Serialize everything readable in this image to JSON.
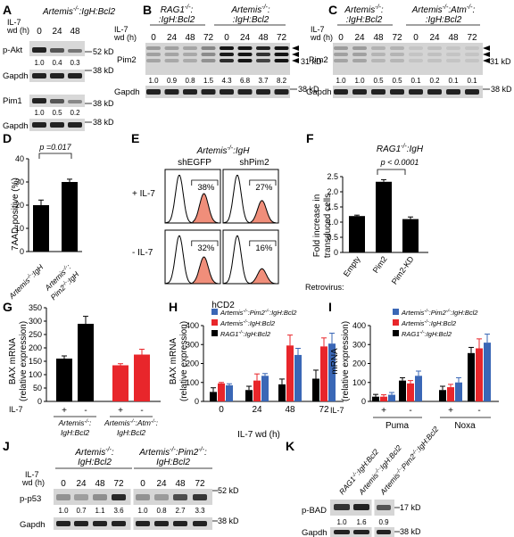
{
  "figure": {
    "panel_letters": [
      "A",
      "B",
      "C",
      "D",
      "E",
      "F",
      "G",
      "H",
      "I",
      "J",
      "K"
    ]
  },
  "panel_a": {
    "genotype_1": "Artemis",
    "genotype_sup": "-/-",
    "genotype_2": ":IgH:Bcl2",
    "il7_label": "IL-7",
    "wd_label": "wd (h)",
    "timepoints": [
      "0",
      "24",
      "48"
    ],
    "rows": [
      "p-Akt",
      "Gapdh",
      "Pim1",
      "Gapdh"
    ],
    "pakt_values": [
      "1.0",
      "0.4",
      "0.3"
    ],
    "pim1_values": [
      "1.0",
      "0.5",
      "0.2"
    ],
    "markers": [
      "52 kD",
      "38 kD",
      "38 kD",
      "38 kD"
    ]
  },
  "panel_b": {
    "il7_label": "IL-7",
    "wd_label": "wd (h)",
    "group_1_line1": "RAG1",
    "group_1_sup": "-/-",
    "group_1_line2": ":IgH:Bcl2",
    "group_2_line1": "Artemis",
    "group_2_sup": "-/-",
    "group_2_line2": ":IgH:Bcl2",
    "timepoints": [
      "0",
      "24",
      "48",
      "72",
      "0",
      "24",
      "48",
      "72"
    ],
    "rows": [
      "Pim2",
      "Gapdh"
    ],
    "pim2_values": [
      "1.0",
      "0.9",
      "0.8",
      "1.5",
      "4.3",
      "6.8",
      "3.7",
      "8.2"
    ],
    "markers": [
      "31 kD",
      "38 kD"
    ]
  },
  "panel_c": {
    "il7_label": "IL-7",
    "wd_label": "wd (h)",
    "group_1_line1": "Artemis",
    "group_1_sup": "-/-",
    "group_1_line2": ":IgH:Bcl2",
    "group_2_line1": "Artemis",
    "group_2_sup": "-/-",
    "group_2_mid": ":Atm",
    "group_2_sup2": "-/-",
    "group_2_line2": ":IgH:Bcl2",
    "timepoints": [
      "0",
      "24",
      "48",
      "72",
      "0",
      "24",
      "48",
      "72"
    ],
    "rows": [
      "Pim2",
      "Gapdh"
    ],
    "pim2_values": [
      "1.0",
      "1.0",
      "0.5",
      "0.5",
      "0.1",
      "0.2",
      "0.1",
      "0.1"
    ],
    "markers": [
      "31 kD",
      "38 kD"
    ]
  },
  "panel_d": {
    "chart_data": {
      "type": "bar",
      "categories": [
        "Artemis-/-IgH",
        "Artemis-/-Pim2-/-IgH"
      ],
      "values": [
        20,
        30
      ],
      "errors": [
        2.2,
        1.2
      ],
      "ylabel": "7AAD-positive (%)",
      "ylim": [
        0,
        40
      ],
      "yticks": [
        "0",
        "10",
        "20",
        "30",
        "40"
      ],
      "pvalue": "p =0.017"
    },
    "cat1": "Artemis",
    "cat1_sup": "-/-",
    "cat1_b": ":IgH",
    "cat2": "Artemis",
    "cat2_sup": "-/-",
    "cat2_b": ":",
    "cat2_c": "Pim2",
    "cat2_sup2": "-/-",
    "cat2_d": ":IgH"
  },
  "panel_e": {
    "title": "Artemis",
    "title_sup": "-/-",
    "title_b": ":IgH",
    "col_1": "shEGFP",
    "col_2": "shPim2",
    "row_1": "+ IL-7",
    "row_2": "- IL-7",
    "percent_values": [
      "38%",
      "27%",
      "32%",
      "16%"
    ],
    "xlabel": "hCD2"
  },
  "panel_f": {
    "chart_data": {
      "type": "bar",
      "categories": [
        "Empty",
        "Pim2",
        "Pim2-KD"
      ],
      "values": [
        1.2,
        2.33,
        1.1
      ],
      "errors": [
        0.03,
        0.07,
        0.07
      ],
      "ylabel": "Fold increase in transduced cells",
      "ylim": [
        0,
        2.5
      ],
      "yticks": [
        "0",
        "0.5",
        "1.0",
        "1.5",
        "2.0",
        "2.5"
      ],
      "pvalue": "p < 0.0001"
    },
    "title": "RAG1",
    "title_sup": "-/-",
    "title_b": ":IgH",
    "ylabel_1": "Fold increase in",
    "ylabel_2": "transduced cells",
    "retrovirus_label": "Retrovirus:"
  },
  "panel_g": {
    "chart_data": {
      "type": "bar",
      "categories": [
        "+",
        "-",
        "+",
        "-"
      ],
      "values": [
        160,
        290,
        135,
        175
      ],
      "errors": [
        10,
        28,
        6,
        20
      ],
      "colors": [
        "#000000",
        "#000000",
        "#e8262b",
        "#e8262b"
      ],
      "ylabel": "BAX mRNA (relative expression)",
      "ylim": [
        0,
        350
      ],
      "yticks": [
        "0",
        "50",
        "100",
        "150",
        "200",
        "250",
        "300",
        "350"
      ]
    },
    "ylabel_1": "BAX mRNA",
    "ylabel_2": "(relative expression)",
    "il7_label": "IL-7",
    "group_1_a": "Artemis",
    "group_1_sup": "-/-",
    "group_1_b": ":",
    "group_1_c": "IgH:Bcl2",
    "group_2_a": "Artemis",
    "group_2_sup": "-/-",
    "group_2_b": ":Atm",
    "group_2_sup2": "-/-",
    "group_2_c": "IgH:Bcl2"
  },
  "panel_h": {
    "chart_data": {
      "type": "bar",
      "categories": [
        "0",
        "24",
        "48",
        "72"
      ],
      "series": [
        {
          "name": "RAG1-/-IgH:Bcl2",
          "values": [
            50,
            60,
            90,
            120
          ],
          "errors": [
            22,
            20,
            28,
            45
          ]
        },
        {
          "name": "Artemis-/-IgH:Bcl2",
          "values": [
            95,
            110,
            295,
            290
          ],
          "errors": [
            5,
            35,
            55,
            45
          ]
        },
        {
          "name": "Artemis-/-Pim2-/-IgH:Bcl2",
          "values": [
            85,
            135,
            245,
            305
          ],
          "errors": [
            8,
            12,
            35,
            55
          ]
        }
      ],
      "colors": [
        "#000000",
        "#e8262b",
        "#3a67b6"
      ],
      "ylabel": "BAX mRNA (relative expression)",
      "xlabel": "IL-7 wd (h)",
      "ylim": [
        0,
        400
      ],
      "yticks": [
        "0",
        "100",
        "200",
        "300",
        "400"
      ]
    },
    "legend": [
      {
        "a": "Artemis",
        "sup": "-/-",
        "b": ":Pim2",
        "sup2": "-/-",
        "c": ":IgH:Bcl2",
        "color": "#3a67b6"
      },
      {
        "a": "Artemis",
        "sup": "-/-",
        "b": ":IgH:Bcl2",
        "sup2": "",
        "c": "",
        "color": "#e8262b"
      },
      {
        "a": "RAG1",
        "sup": "-/-",
        "b": ":IgH:Bcl2",
        "sup2": "",
        "c": "",
        "color": "#000000"
      }
    ],
    "ylabel_1": "BAX mRNA",
    "ylabel_2": "(relative expression)",
    "xlabel": "IL-7 wd (h)"
  },
  "panel_i": {
    "chart_data": {
      "type": "bar",
      "categories": [
        "Puma +",
        "Puma -",
        "Noxa +",
        "Noxa -"
      ],
      "series": [
        {
          "name": "RAG1-/-IgH:Bcl2",
          "values": [
            25,
            110,
            60,
            255
          ],
          "errors": [
            12,
            15,
            20,
            30
          ]
        },
        {
          "name": "Artemis-/-IgH:Bcl2",
          "values": [
            25,
            95,
            75,
            280
          ],
          "errors": [
            10,
            15,
            15,
            50
          ]
        },
        {
          "name": "Artemis-/-Pim2-/-IgH:Bcl2",
          "values": [
            35,
            135,
            100,
            310
          ],
          "errors": [
            12,
            25,
            25,
            45
          ]
        }
      ],
      "colors": [
        "#000000",
        "#e8262b",
        "#3a67b6"
      ],
      "ylabel": "mRNA (relative expression)",
      "ylim": [
        0,
        400
      ],
      "yticks": [
        "0",
        "100",
        "200",
        "300",
        "400"
      ]
    },
    "legend": [
      {
        "a": "Artemis",
        "sup": "-/-",
        "b": ":Pim2",
        "sup2": "-/-",
        "c": ":IgH:Bcl2",
        "color": "#3a67b6"
      },
      {
        "a": "Artemis",
        "sup": "-/-",
        "b": ":IgH:Bcl2",
        "sup2": "",
        "c": "",
        "color": "#e8262b"
      },
      {
        "a": "RAG1",
        "sup": "-/-",
        "b": ":IgH:Bcl2",
        "sup2": "",
        "c": "",
        "color": "#000000"
      }
    ],
    "ylabel_1": "mRNA",
    "ylabel_2": "(relative expression)",
    "il7_label": "IL-7",
    "signs": [
      "+",
      "-",
      "+",
      "-"
    ],
    "groups": [
      "Puma",
      "Noxa"
    ]
  },
  "panel_j": {
    "il7_label": "IL-7",
    "wd_label": "wd (h)",
    "group_1_a": "Artemis",
    "group_1_sup": "-/-",
    "group_1_b": ":",
    "group_1_c": "IgH:Bcl2",
    "group_2_a": "Artemis",
    "group_2_sup": "-/-",
    "group_2_b": ":Pim2",
    "group_2_sup2": "-/-",
    "group_2_b2": ":",
    "group_2_c": "IgH:Bcl2",
    "timepoints": [
      "0",
      "24",
      "48",
      "72",
      "0",
      "24",
      "48",
      "72"
    ],
    "rows": [
      "p-p53",
      "Gapdh"
    ],
    "p53_values": [
      "1.0",
      "0.7",
      "1.1",
      "3.6",
      "1.0",
      "0.8",
      "2.7",
      "3.3"
    ],
    "markers": [
      "52 kD",
      "38 kD"
    ]
  },
  "panel_k": {
    "lanes": [
      {
        "a": "RAG1",
        "sup": "-/-",
        "b": ":IgH:Bcl2"
      },
      {
        "a": "Artemis",
        "sup": "-/-",
        "b": ":IgH:Bcl2"
      },
      {
        "a": "Artemis",
        "sup": "-/-",
        "b": ":Pim2",
        "sup2": "-/-",
        "c": ":IgH:Bcl2"
      }
    ],
    "rows": [
      "p-BAD",
      "Gapdh"
    ],
    "bad_values": [
      "1.0",
      "1.6",
      "0.9"
    ],
    "markers": [
      "17 kD",
      "38 kD"
    ]
  }
}
